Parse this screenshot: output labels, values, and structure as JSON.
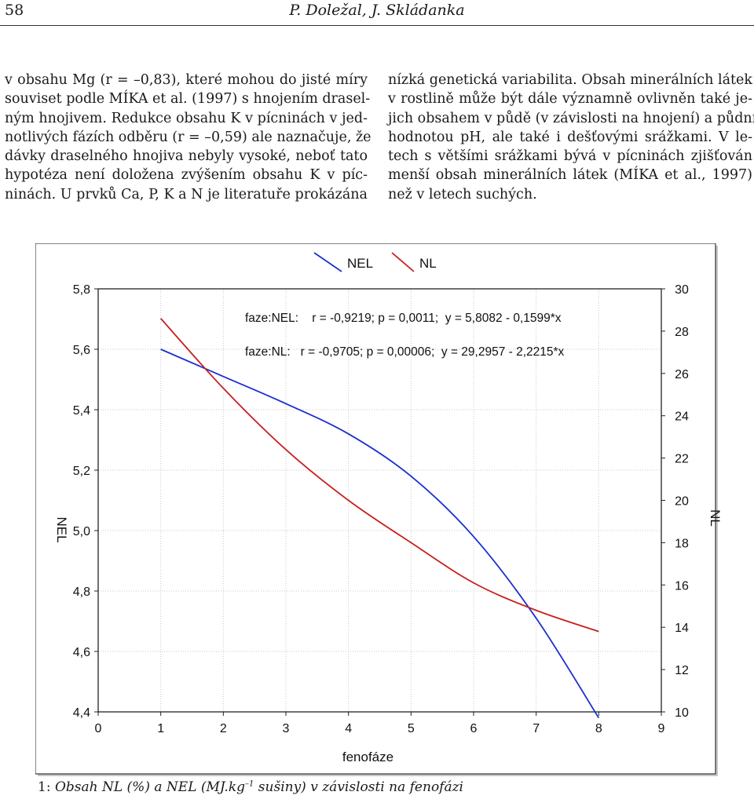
{
  "header": {
    "page_number": "58",
    "running_title": "P. Doležal, J. Skládanka"
  },
  "text": {
    "left_lines": [
      "v obsahu Mg (r = –0,83), které mohou do jisté míry",
      "souviset podle MÍKA et al. (1997) s hnojením drasel-",
      "ným hnojivem. Redukce obsahu K v pícninách v jed-",
      "notlivých fázích odběru (r = –0,59) ale naznačuje, že",
      "dávky draselného hnojiva nebyly vysoké, neboť tato",
      "hypotéza není doložena zvýšením obsahu K v píc-",
      "ninách. U prvků Ca, P, K a N je literatuře prokázána"
    ],
    "right_lines": [
      "nízká genetická variabilita. Obsah minerálních látek",
      "v rostlině může být dále významně ovlivněn také je-",
      "jich obsahem v půdě (v závislosti na hnojení) a půdní",
      "hodnotou pH, ale také i dešťovými srážkami. V le-",
      "tech s většími srážkami bývá v pícninách zjišťován",
      "menší obsah minerálních látek (MÍKA et al., 1997)",
      "než v letech suchých."
    ]
  },
  "caption": {
    "number": "1:",
    "text_before_sup": "Obsah NL (%) a NEL (MJ.kg",
    "sup": "–1",
    "text_after_sup": " sušiny) v závislosti na fenofázi"
  },
  "chart_data": {
    "type": "line",
    "xlabel": "fenofáze",
    "ylabel": "NEL",
    "y2label": "NL",
    "xlim": [
      0,
      9
    ],
    "ylim": [
      4.4,
      5.8
    ],
    "y2lim": [
      10,
      30
    ],
    "x_ticks": [
      "0",
      "1",
      "2",
      "3",
      "4",
      "5",
      "6",
      "7",
      "8",
      "9"
    ],
    "y_ticks": [
      "4,4",
      "4,6",
      "4,8",
      "5,0",
      "5,2",
      "5,4",
      "5,6",
      "5,8"
    ],
    "y2_ticks": [
      "10",
      "12",
      "14",
      "16",
      "18",
      "20",
      "22",
      "24",
      "26",
      "28",
      "30"
    ],
    "grid": true,
    "legend_position": "top",
    "series": [
      {
        "name": "NEL",
        "axis": "left",
        "color": "#1a2fd0",
        "x": [
          1,
          2,
          3,
          4,
          5,
          6,
          7,
          8
        ],
        "y": [
          5.6,
          5.51,
          5.42,
          5.32,
          5.18,
          4.98,
          4.71,
          4.38
        ]
      },
      {
        "name": "NL",
        "axis": "right",
        "color": "#c82020",
        "x": [
          1,
          2,
          3,
          4,
          5,
          6,
          7,
          8
        ],
        "y": [
          28.6,
          25.3,
          22.4,
          20.0,
          18.0,
          16.1,
          14.8,
          13.8
        ]
      }
    ],
    "annotations": [
      "faze:NEL:    r = -0,9219; p = 0,0011;  y = 5,8082 - 0,1599*x",
      "faze:NL:   r = -0,9705; p = 0,00006;  y = 29,2957 - 2,2215*x"
    ]
  }
}
